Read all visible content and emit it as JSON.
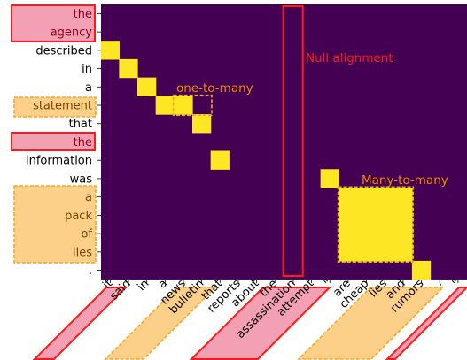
{
  "colors": {
    "background": "#440154",
    "aligned": "#fde725",
    "highlight_red": "#ff1a1a",
    "highlight_red_fill": "#f4a0b4",
    "highlight_orange": "#f5a623",
    "highlight_orange_fill": "#fdd08a",
    "annotation_orange": "#f08a00"
  },
  "chart_data": {
    "type": "heatmap",
    "rows": [
      "the",
      "agency",
      "described",
      "in",
      "a",
      "statement",
      "that",
      "the",
      "information",
      "was",
      "a",
      "pack",
      "of",
      "lies",
      "."
    ],
    "cols": [
      "it",
      "said",
      "in",
      "a",
      "news",
      "bulletin",
      "that",
      "reports",
      "about",
      "the",
      "assassination",
      "attempt",
      "\"",
      "are",
      "cheap",
      "lies",
      "and",
      "rumors",
      ".",
      "\""
    ],
    "cells": [
      [
        2,
        0
      ],
      [
        3,
        1
      ],
      [
        4,
        2
      ],
      [
        5,
        3
      ],
      [
        5,
        4
      ],
      [
        6,
        5
      ],
      [
        8,
        6
      ],
      [
        9,
        12
      ],
      [
        10,
        13
      ],
      [
        10,
        14
      ],
      [
        10,
        15
      ],
      [
        10,
        16
      ],
      [
        11,
        13
      ],
      [
        11,
        14
      ],
      [
        11,
        15
      ],
      [
        11,
        16
      ],
      [
        12,
        13
      ],
      [
        12,
        14
      ],
      [
        12,
        15
      ],
      [
        12,
        16
      ],
      [
        13,
        13
      ],
      [
        13,
        14
      ],
      [
        13,
        15
      ],
      [
        13,
        16
      ],
      [
        14,
        17
      ]
    ],
    "annotations": {
      "null_alignment": "Null alignment",
      "one_to_many": "one-to-many",
      "many_to_many": "Many-to-many"
    }
  }
}
